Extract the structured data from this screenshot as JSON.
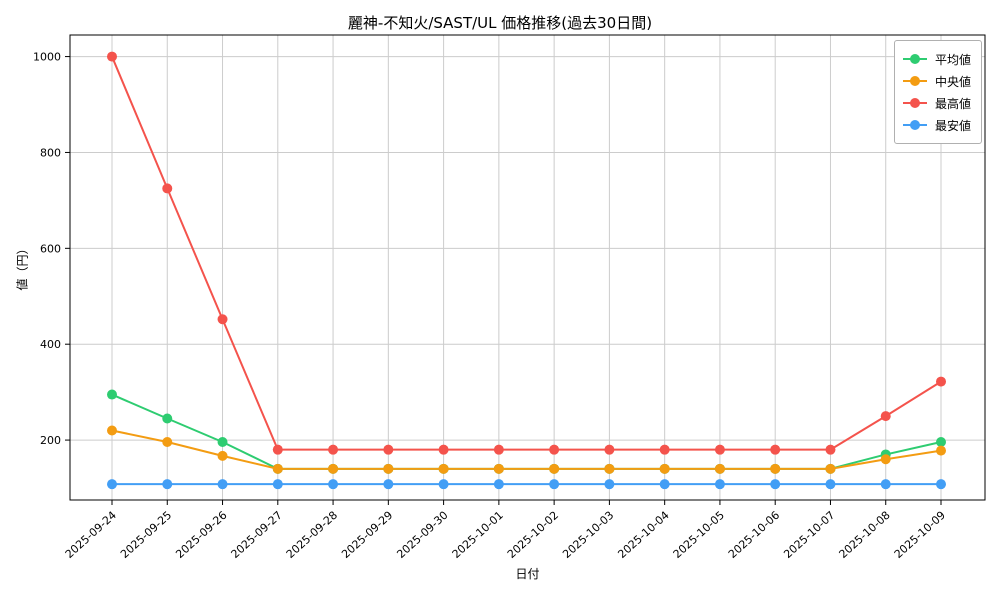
{
  "chart_data": {
    "type": "line",
    "title": "麗神-不知火/SAST/UL 価格推移(過去30日間)",
    "xlabel": "日付",
    "ylabel": "値（円）",
    "ylim": [
      75,
      1045
    ],
    "yticks": [
      200,
      400,
      600,
      800,
      1000
    ],
    "grid": "on",
    "grid_color": "#cccccc",
    "legend_position": "upper right",
    "categories": [
      "2025-09-24",
      "2025-09-25",
      "2025-09-26",
      "2025-09-27",
      "2025-09-28",
      "2025-09-29",
      "2025-09-30",
      "2025-10-01",
      "2025-10-02",
      "2025-10-03",
      "2025-10-04",
      "2025-10-05",
      "2025-10-06",
      "2025-10-07",
      "2025-10-08",
      "2025-10-09"
    ],
    "series": [
      {
        "name": "平均値",
        "color": "#2ecc71",
        "values": [
          295,
          245,
          196,
          140,
          140,
          140,
          140,
          140,
          140,
          140,
          140,
          140,
          140,
          140,
          170,
          196
        ]
      },
      {
        "name": "中央値",
        "color": "#f39c12",
        "values": [
          220,
          196,
          167,
          140,
          140,
          140,
          140,
          140,
          140,
          140,
          140,
          140,
          140,
          140,
          160,
          178
        ]
      },
      {
        "name": "最高値",
        "color": "#f4534c",
        "values": [
          1000,
          725,
          452,
          180,
          180,
          180,
          180,
          180,
          180,
          180,
          180,
          180,
          180,
          180,
          250,
          322
        ]
      },
      {
        "name": "最安値",
        "color": "#429ef5",
        "values": [
          108,
          108,
          108,
          108,
          108,
          108,
          108,
          108,
          108,
          108,
          108,
          108,
          108,
          108,
          108,
          108
        ]
      }
    ]
  }
}
